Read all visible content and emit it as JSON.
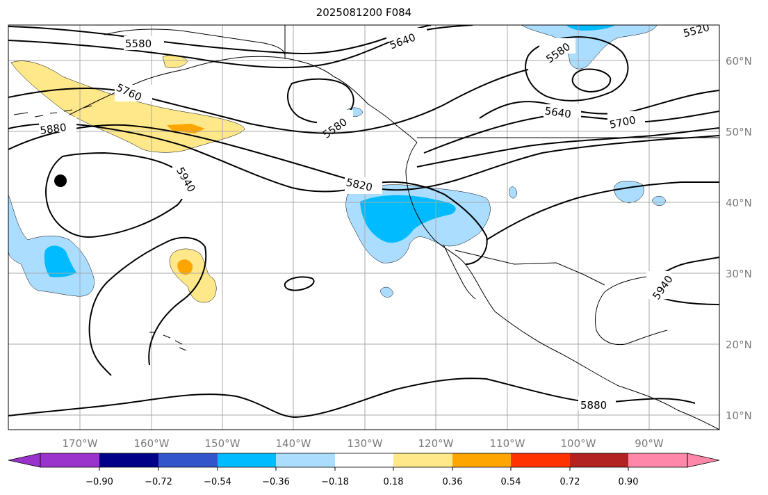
{
  "title": "2025081200 F084",
  "map": {
    "lon_labels": [
      "170°W",
      "160°W",
      "150°W",
      "140°W",
      "130°W",
      "120°W",
      "110°W",
      "100°W",
      "90°W"
    ],
    "lat_labels": [
      "60°N",
      "50°N",
      "40°N",
      "30°N",
      "20°N",
      "10°N"
    ],
    "contour_labels": [
      "5580",
      "5640",
      "5580",
      "5520",
      "5760",
      "5880",
      "5940",
      "5580",
      "5640",
      "5700",
      "5820",
      "5940",
      "5880"
    ],
    "marker": "filled-circle"
  },
  "colorbar": {
    "tick_labels": [
      "−0.90",
      "−0.72",
      "−0.54",
      "−0.36",
      "−0.18",
      "0.18",
      "0.36",
      "0.54",
      "0.72",
      "0.90"
    ],
    "colors": [
      "#9933cc",
      "#000088",
      "#3355cc",
      "#00bbff",
      "#aaddff",
      "#ffffff",
      "#ffe88a",
      "#ffa500",
      "#ff3300",
      "#b22222",
      "#ff88aa"
    ]
  }
}
